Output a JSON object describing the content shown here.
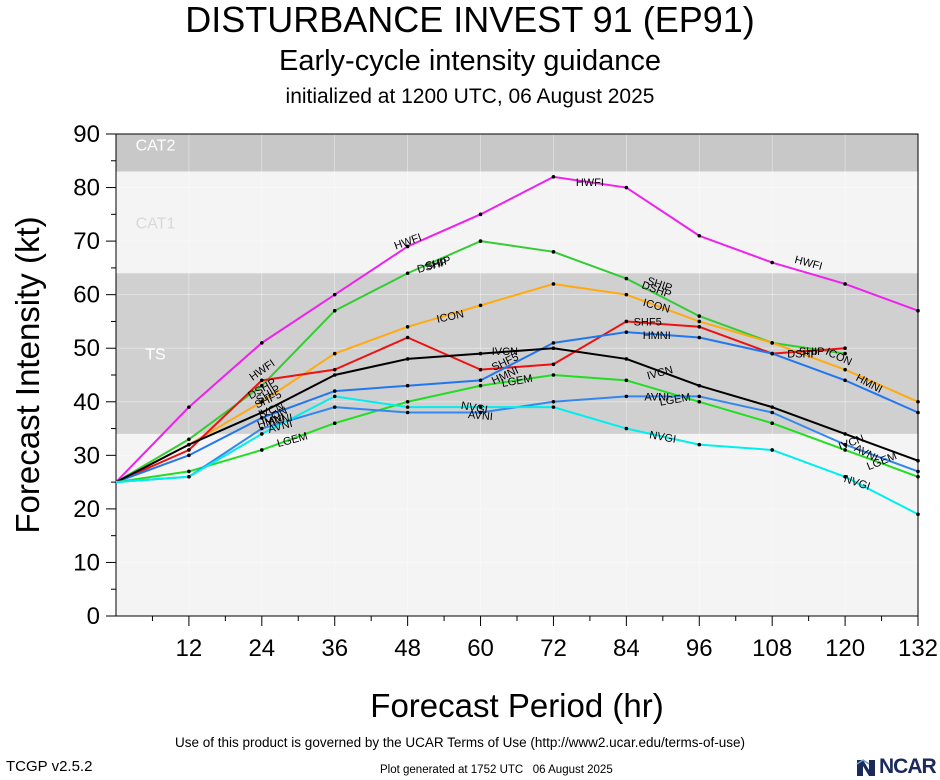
{
  "header": {
    "title": "DISTURBANCE INVEST 91 (EP91)",
    "subtitle": "Early-cycle intensity guidance",
    "init": "initialized at 1200 UTC, 06 August 2025"
  },
  "footer": {
    "terms": "Use of this product is governed by the UCAR Terms of Use (http://www2.ucar.edu/terms-of-use)",
    "version": "TCGP v2.5.2",
    "generated": "Plot generated at 1752 UTC   06 August 2025",
    "logo": "NCAR"
  },
  "chart_data": {
    "type": "line",
    "xlabel": "Forecast Period (hr)",
    "ylabel": "Forecast Intensity (kt)",
    "xlim": [
      0,
      132
    ],
    "ylim": [
      0,
      90
    ],
    "xticks": [
      12,
      24,
      36,
      48,
      60,
      72,
      84,
      96,
      108,
      120,
      132
    ],
    "yticks": [
      0,
      10,
      20,
      30,
      40,
      50,
      60,
      70,
      80,
      90
    ],
    "grid": true,
    "bands": [
      {
        "name": "CAT2",
        "from": 83,
        "to": 96,
        "color": "#c8c8c8"
      },
      {
        "name": "CAT1",
        "from": 64,
        "to": 83,
        "color": "#f4f4f4"
      },
      {
        "name": "TS",
        "from": 34,
        "to": 64,
        "color": "#d0d0d0"
      },
      {
        "name": "",
        "from": 0,
        "to": 34,
        "color": "#f4f4f4"
      }
    ],
    "x": [
      0,
      12,
      24,
      36,
      48,
      60,
      72,
      84,
      96,
      108,
      120,
      132
    ],
    "series": [
      {
        "name": "HWFI",
        "color": "#ee22ee",
        "values": [
          25,
          39,
          51,
          60,
          69,
          75,
          82,
          80,
          71,
          66,
          62,
          57
        ]
      },
      {
        "name": "DSHP",
        "color": "#33cc33",
        "values": [
          25,
          33,
          43,
          57,
          64,
          70,
          68,
          63,
          56,
          51,
          49,
          null
        ]
      },
      {
        "name": "ICON",
        "color": "#ffaa11",
        "values": [
          25,
          32,
          40,
          49,
          54,
          58,
          62,
          60,
          55,
          51,
          46,
          40
        ]
      },
      {
        "name": "SHF5",
        "color": "#ee1111",
        "values": [
          25,
          31,
          44,
          46,
          52,
          46,
          47,
          55,
          54,
          49,
          50,
          null
        ]
      },
      {
        "name": "HMNI",
        "color": "#2277ee",
        "values": [
          25,
          30,
          37,
          42,
          43,
          44,
          51,
          53,
          52,
          49,
          44,
          38
        ]
      },
      {
        "name": "IVCN",
        "color": "#000000",
        "values": [
          25,
          32,
          38,
          45,
          48,
          49,
          50,
          48,
          43,
          39,
          34,
          29
        ]
      },
      {
        "name": "LGEM",
        "color": "#22dd22",
        "values": [
          25,
          27,
          31,
          36,
          40,
          43,
          45,
          44,
          40,
          36,
          31,
          26
        ]
      },
      {
        "name": "AVNI",
        "color": "#3388ee",
        "values": [
          25,
          26,
          35,
          39,
          38,
          38,
          40,
          41,
          41,
          38,
          32,
          27
        ]
      },
      {
        "name": "NVGI",
        "color": "#00eeee",
        "values": [
          25,
          26,
          34,
          41,
          39,
          39,
          39,
          35,
          32,
          31,
          26,
          19
        ]
      }
    ],
    "labels": [
      {
        "series": "HWFI",
        "text": "HWFI",
        "x": 24,
        "y": 46,
        "angle": -35
      },
      {
        "series": "HWFI",
        "text": "HWFI",
        "x": 48,
        "y": 70,
        "angle": -20
      },
      {
        "series": "HWFI",
        "text": "HWFI",
        "x": 78,
        "y": 81,
        "angle": 0
      },
      {
        "series": "HWFI",
        "text": "HWFI",
        "x": 114,
        "y": 66,
        "angle": 15
      },
      {
        "series": "DSHP",
        "text": "DSHP",
        "x": 24,
        "y": 42.5,
        "angle": -30
      },
      {
        "series": "DSHP",
        "text": "DSHP",
        "x": 52,
        "y": 65.5,
        "angle": -15
      },
      {
        "series": "DSHP",
        "text": "DSHP",
        "x": 89,
        "y": 61,
        "angle": 20
      },
      {
        "series": "SHIP",
        "text": "SHIP",
        "x": 25,
        "y": 41.5,
        "angle": -30
      },
      {
        "series": "SHIP",
        "text": "SHIP",
        "x": 53,
        "y": 66,
        "angle": -15
      },
      {
        "series": "SHIP",
        "text": "SHIP",
        "x": 89.5,
        "y": 62,
        "angle": 18
      },
      {
        "series": "SHIP",
        "text": "SHIP",
        "x": 114.5,
        "y": 49.5,
        "angle": 0
      },
      {
        "series": "ICON",
        "text": "ICON",
        "x": 26,
        "y": 37.5,
        "angle": -25
      },
      {
        "series": "ICON",
        "text": "ICON",
        "x": 55,
        "y": 56,
        "angle": -12
      },
      {
        "series": "ICON",
        "text": "ICON",
        "x": 89,
        "y": 58,
        "angle": 15
      },
      {
        "series": "ICON",
        "text": "ICON",
        "x": 119,
        "y": 48.5,
        "angle": 25
      },
      {
        "series": "SHF5",
        "text": "SHF5",
        "x": 25,
        "y": 40.5,
        "angle": -25
      },
      {
        "series": "SHF5",
        "text": "SHF5",
        "x": 64,
        "y": 47.5,
        "angle": -25
      },
      {
        "series": "SHF5",
        "text": "SHF5",
        "x": 87.5,
        "y": 55,
        "angle": 0
      },
      {
        "series": "DSHP",
        "text": "DSHP",
        "x": 113,
        "y": 49,
        "angle": 0
      },
      {
        "series": "HMNI",
        "text": "HMNI",
        "x": 25.5,
        "y": 36.5,
        "angle": -18
      },
      {
        "series": "HMNI",
        "text": "HMNI",
        "x": 64,
        "y": 45,
        "angle": -25
      },
      {
        "series": "HMNI",
        "text": "HMNI",
        "x": 89,
        "y": 52.5,
        "angle": 0
      },
      {
        "series": "HMNI",
        "text": "HMNI",
        "x": 124,
        "y": 43.5,
        "angle": 28
      },
      {
        "series": "IVCN",
        "text": "IVCN",
        "x": 25.5,
        "y": 38.5,
        "angle": -20
      },
      {
        "series": "IVCN",
        "text": "IVCN",
        "x": 64,
        "y": 49.5,
        "angle": 0
      },
      {
        "series": "IVCN",
        "text": "IVCN",
        "x": 89.5,
        "y": 45.5,
        "angle": -15
      },
      {
        "series": "IVCN",
        "text": "IVCN",
        "x": 121,
        "y": 32.5,
        "angle": -20
      },
      {
        "series": "LGEM",
        "text": "LGEM",
        "x": 29,
        "y": 33,
        "angle": -15
      },
      {
        "series": "LGEM",
        "text": "LGEM",
        "x": 66,
        "y": 44,
        "angle": -10
      },
      {
        "series": "LGEM",
        "text": "LGEM",
        "x": 92,
        "y": 40.5,
        "angle": -10
      },
      {
        "series": "LGEM",
        "text": "LGEM",
        "x": 126,
        "y": 29,
        "angle": -22
      },
      {
        "series": "AVNI",
        "text": "AVNI",
        "x": 27,
        "y": 35.5,
        "angle": -15
      },
      {
        "series": "AVNI",
        "text": "AVNI",
        "x": 27,
        "y": 36.8,
        "angle": -10
      },
      {
        "series": "AVNI",
        "text": "AVNI",
        "x": 60,
        "y": 37.5,
        "angle": 5
      },
      {
        "series": "AVNI",
        "text": "AVNI",
        "x": 89,
        "y": 41,
        "angle": 0
      },
      {
        "series": "AVNI",
        "text": "AVNI",
        "x": 123.5,
        "y": 30.5,
        "angle": 28
      },
      {
        "series": "NVGI",
        "text": "NVGI",
        "x": 59,
        "y": 39,
        "angle": 10
      },
      {
        "series": "NVGI",
        "text": "NVGI",
        "x": 90,
        "y": 33.5,
        "angle": 10
      },
      {
        "series": "NVGI",
        "text": "NVGI",
        "x": 122,
        "y": 25,
        "angle": 18
      }
    ]
  }
}
